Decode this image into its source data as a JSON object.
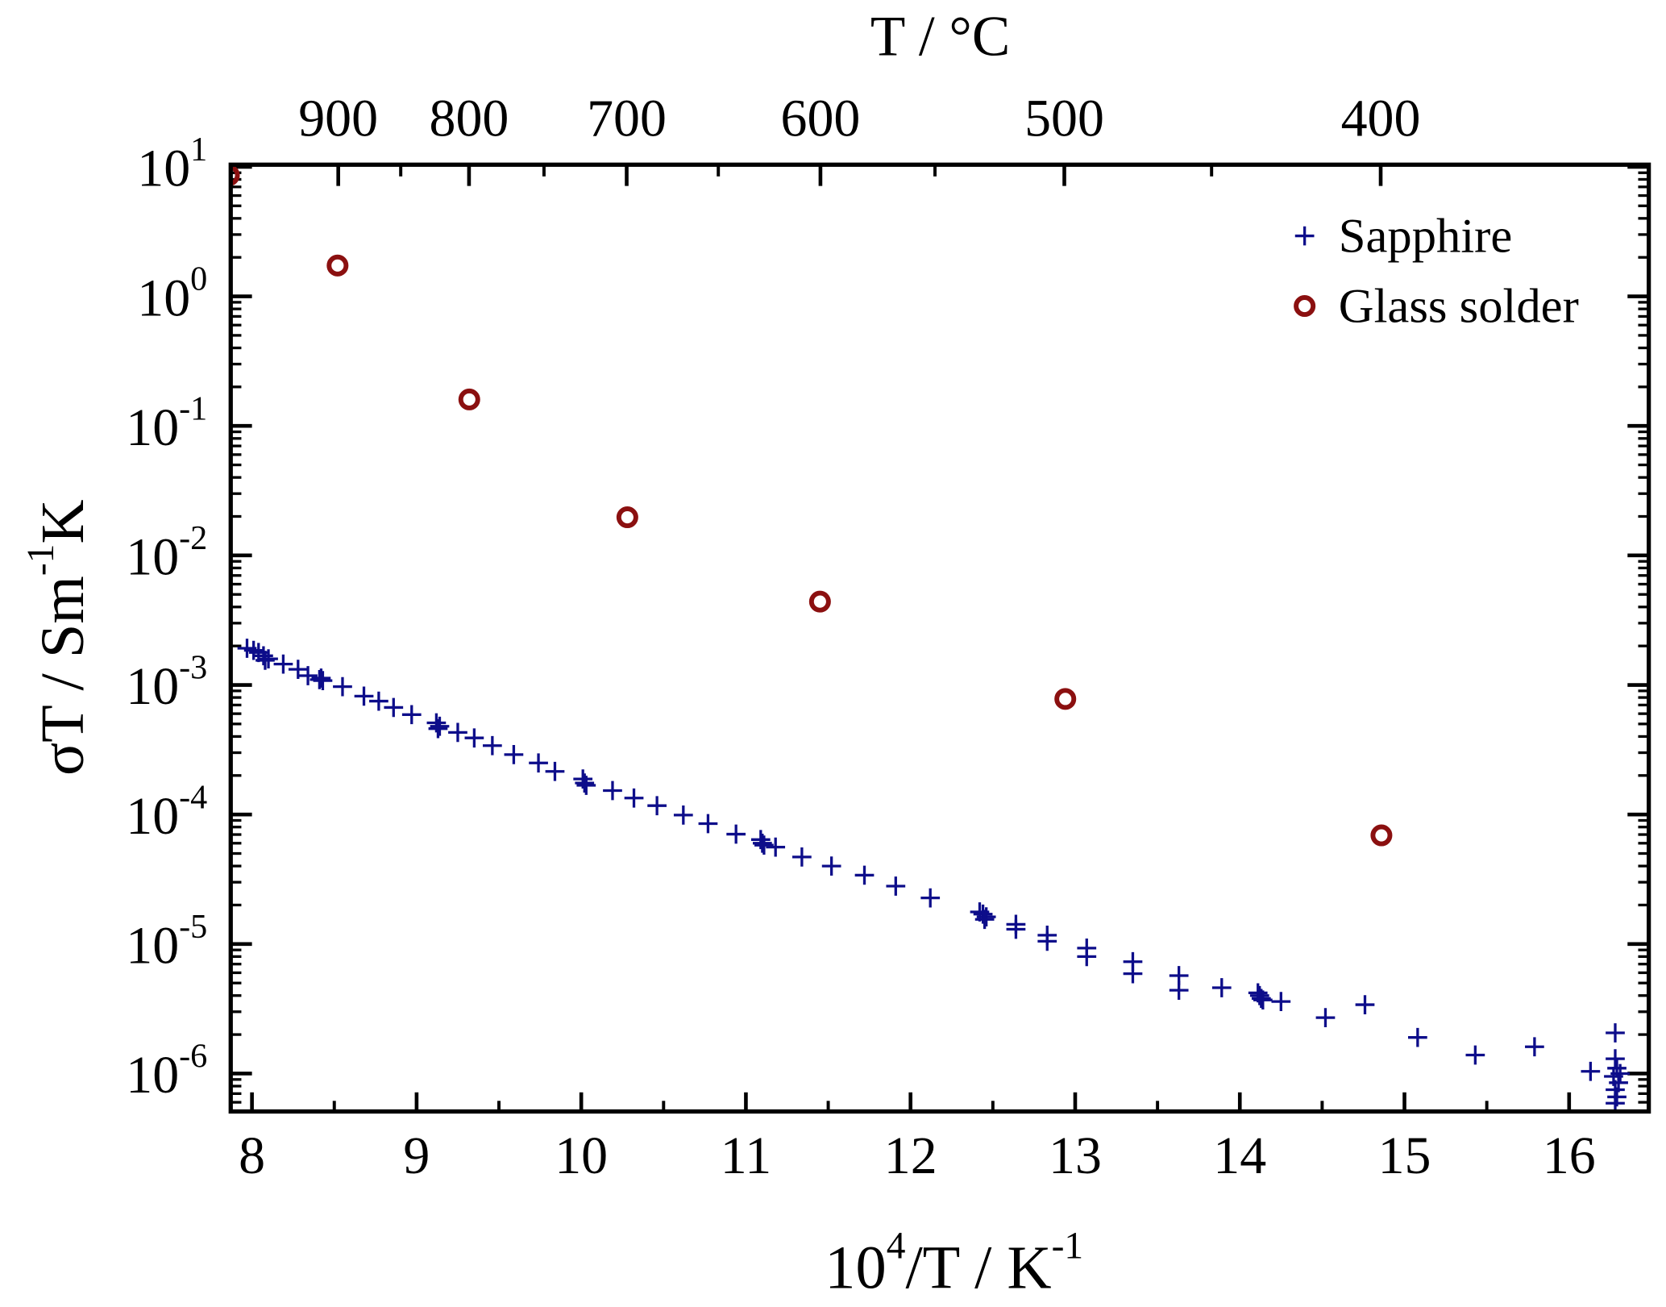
{
  "chart_data": {
    "type": "scatter",
    "title": "",
    "xlabel": {
      "base": "10",
      "exp": "4",
      "rest": "/T / K",
      "unit_exp": "-1"
    },
    "ylabel": {
      "main": "σT / Sm",
      "exp": "-1",
      "rest": "K"
    },
    "top_axis_label": "T / °C",
    "xlim": [
      7.87,
      16.48
    ],
    "ylim": [
      5.07e-07,
      10.4
    ],
    "yscale": "log",
    "x_ticks": [
      8,
      9,
      10,
      11,
      12,
      13,
      14,
      15,
      16
    ],
    "x_tick_labels": [
      "8",
      "9",
      "10",
      "11",
      "12",
      "13",
      "14",
      "15",
      "16"
    ],
    "y_ticks": [
      10,
      1,
      0.1,
      0.01,
      0.001,
      0.0001,
      1e-05,
      1e-06
    ],
    "y_tick_labels": [
      {
        "base": "10",
        "exp": "1"
      },
      {
        "base": "10",
        "exp": "0"
      },
      {
        "base": "10",
        "exp": "-1"
      },
      {
        "base": "10",
        "exp": "-2"
      },
      {
        "base": "10",
        "exp": "-3"
      },
      {
        "base": "10",
        "exp": "-4"
      },
      {
        "base": "10",
        "exp": "-5"
      },
      {
        "base": "10",
        "exp": "-6"
      }
    ],
    "top_ticks_celsius": [
      900,
      800,
      700,
      600,
      500,
      400
    ],
    "top_tick_labels": [
      "900",
      "800",
      "700",
      "600",
      "500",
      "400"
    ],
    "top_minor_ticks_celsius": [
      850,
      750,
      650,
      550,
      450
    ],
    "grid": false,
    "legend_placement": "top-right",
    "series": [
      {
        "name": "Sapphire",
        "marker": "plus",
        "color": "#0d0d8a",
        "x": [
          7.97,
          8.01,
          8.04,
          8.07,
          8.1,
          8.08,
          8.19,
          8.28,
          8.34,
          8.42,
          8.43,
          8.41,
          8.55,
          8.68,
          8.77,
          8.86,
          8.97,
          9.12,
          9.14,
          9.13,
          9.25,
          9.35,
          9.46,
          9.59,
          9.74,
          9.84,
          10.01,
          10.02,
          10.03,
          10.19,
          10.32,
          10.46,
          10.62,
          10.77,
          10.94,
          11.09,
          11.1,
          11.11,
          11.18,
          11.34,
          11.52,
          11.72,
          11.91,
          12.12,
          12.42,
          12.44,
          12.46,
          12.45,
          12.64,
          12.64,
          12.83,
          12.83,
          13.07,
          13.07,
          13.35,
          13.35,
          13.63,
          13.63,
          13.89,
          14.12,
          14.13,
          14.11,
          14.14,
          14.25,
          14.52,
          14.76,
          15.08,
          15.43,
          15.79,
          16.13,
          16.28,
          16.28,
          16.29,
          16.27,
          16.3,
          16.28,
          16.29,
          16.28,
          16.31
        ],
        "y": [
          0.00192,
          0.00185,
          0.00178,
          0.00168,
          0.00159,
          0.00155,
          0.00145,
          0.00132,
          0.00118,
          0.00113,
          0.00108,
          0.0011,
          0.00097,
          0.00082,
          0.00075,
          0.00067,
          0.00059,
          0.00051,
          0.00048,
          0.00046,
          0.00043,
          0.00039,
          0.00034,
          0.00029,
          0.00025,
          0.000215,
          0.000188,
          0.000175,
          0.000168,
          0.000153,
          0.000134,
          0.000117,
          9.9e-05,
          8.5e-05,
          7.05e-05,
          6.4e-05,
          6e-05,
          5.8e-05,
          5.6e-05,
          4.7e-05,
          4e-05,
          3.4e-05,
          2.8e-05,
          2.27e-05,
          1.77e-05,
          1.7e-05,
          1.62e-05,
          1.55e-05,
          1.42e-05,
          1.3e-05,
          1.17e-05,
          1.05e-05,
          9.3e-06,
          8e-06,
          7.3e-06,
          5.9e-06,
          5.7e-06,
          4.4e-06,
          4.6e-06,
          4e-06,
          3.8e-06,
          4.2e-06,
          3.7e-06,
          3.6e-06,
          2.7e-06,
          3.4e-06,
          1.9e-06,
          1.39e-06,
          1.61e-06,
          1.04e-06,
          2.06e-06,
          1.3e-06,
          1.1e-06,
          9.5e-07,
          8.5e-07,
          7.5e-07,
          6.6e-07,
          5.9e-07,
          1e-06
        ]
      },
      {
        "name": "Glass solder",
        "marker": "open-circle",
        "color": "#8b1010",
        "x": [
          7.86,
          8.52,
          9.32,
          10.28,
          11.45,
          12.94,
          14.86
        ],
        "y": [
          8.6,
          1.73,
          0.16,
          0.0197,
          0.0044,
          0.00078,
          6.9e-05
        ]
      }
    ]
  }
}
